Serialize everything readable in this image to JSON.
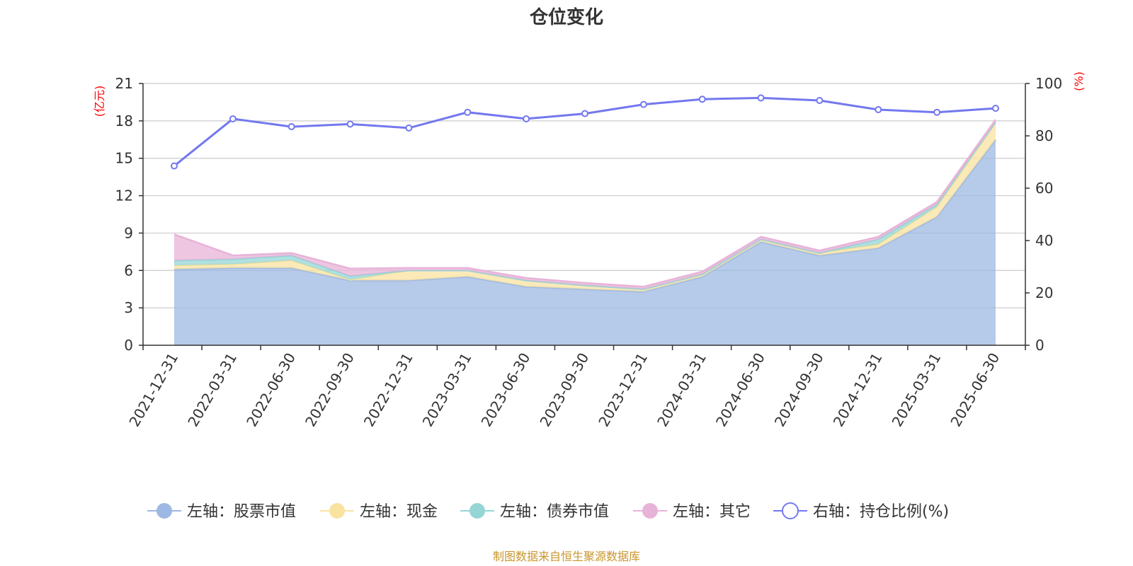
{
  "title": "仓位变化",
  "source": "制图数据来自恒生聚源数据库",
  "colors": {
    "stock": "#9db8e2",
    "cash": "#f9e3a0",
    "bond": "#95d5d6",
    "other": "#e8b3d8",
    "ratio": "#7378ee",
    "axis": "#333333",
    "grid": "#cccccc",
    "unit": "#ff0000",
    "source": "#c8962d"
  },
  "chart_data": {
    "type": "area",
    "title": "仓位变化",
    "x": [
      "2021-12-31",
      "2022-03-31",
      "2022-06-30",
      "2022-09-30",
      "2022-12-31",
      "2023-03-31",
      "2023-06-30",
      "2023-09-30",
      "2023-12-31",
      "2024-03-31",
      "2024-06-30",
      "2024-09-30",
      "2024-12-31",
      "2025-03-31",
      "2025-06-30"
    ],
    "left_axis": {
      "unit_label": "(亿元)",
      "ylim": [
        0,
        21
      ],
      "ticks": [
        0,
        3,
        6,
        9,
        12,
        15,
        18,
        21
      ]
    },
    "right_axis": {
      "unit_label": "(%)",
      "ylim": [
        0,
        100
      ],
      "ticks": [
        0,
        20,
        40,
        60,
        80,
        100
      ]
    },
    "stacked": true,
    "series": [
      {
        "name": "左轴：股票市值",
        "axis": "left",
        "key": "stock",
        "values": [
          6.1,
          6.2,
          6.2,
          5.2,
          5.2,
          5.5,
          4.7,
          4.5,
          4.3,
          5.5,
          8.3,
          7.2,
          7.8,
          10.3,
          16.5
        ]
      },
      {
        "name": "左轴：现金",
        "axis": "left",
        "key": "cash",
        "values": [
          0.3,
          0.3,
          0.6,
          0.05,
          0.8,
          0.5,
          0.5,
          0.3,
          0.2,
          0.2,
          0.2,
          0.2,
          0.3,
          0.8,
          1.3
        ]
      },
      {
        "name": "左轴：债券市值",
        "axis": "left",
        "key": "bond",
        "values": [
          0.4,
          0.4,
          0.4,
          0.3,
          0.0,
          0.0,
          0.0,
          0.0,
          0.0,
          0.0,
          0.0,
          0.0,
          0.4,
          0.2,
          0.1
        ]
      },
      {
        "name": "左轴：其它",
        "axis": "left",
        "key": "other",
        "values": [
          2.1,
          0.3,
          0.2,
          0.6,
          0.2,
          0.2,
          0.2,
          0.2,
          0.2,
          0.2,
          0.2,
          0.2,
          0.2,
          0.2,
          0.2
        ]
      },
      {
        "name": "右轴：持仓比例(%)",
        "axis": "right",
        "key": "ratio",
        "values": [
          68.5,
          86.5,
          83.5,
          84.5,
          83.0,
          89.0,
          86.5,
          88.5,
          92.0,
          94.0,
          94.5,
          93.5,
          90.0,
          89.0,
          90.5
        ]
      }
    ],
    "legend_position": "bottom",
    "grid": true
  }
}
